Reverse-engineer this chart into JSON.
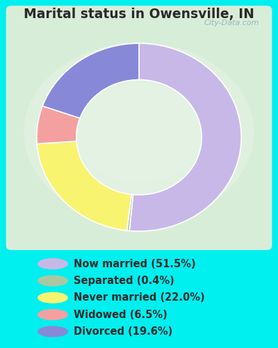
{
  "title": "Marital status in Owensville, IN",
  "title_color": "#2a2a2a",
  "outer_bg_color": "#00efef",
  "chart_bg_color_center": "#deeede",
  "legend_bg_color": "#00efef",
  "slices": [
    {
      "label": "Now married (51.5%)",
      "value": 51.5,
      "color": "#c8b8e8"
    },
    {
      "label": "Separated (0.4%)",
      "value": 0.4,
      "color": "#aac8a0"
    },
    {
      "label": "Never married (22.0%)",
      "value": 22.0,
      "color": "#f8f470"
    },
    {
      "label": "Widowed (6.5%)",
      "value": 6.5,
      "color": "#f4a0a0"
    },
    {
      "label": "Divorced (19.6%)",
      "value": 19.6,
      "color": "#8888d8"
    }
  ],
  "legend_text_color": "#2a2a2a",
  "legend_fontsize": 10.5,
  "title_fontsize": 13.5,
  "watermark": "City-Data.com",
  "watermark_color": "#99aabb"
}
